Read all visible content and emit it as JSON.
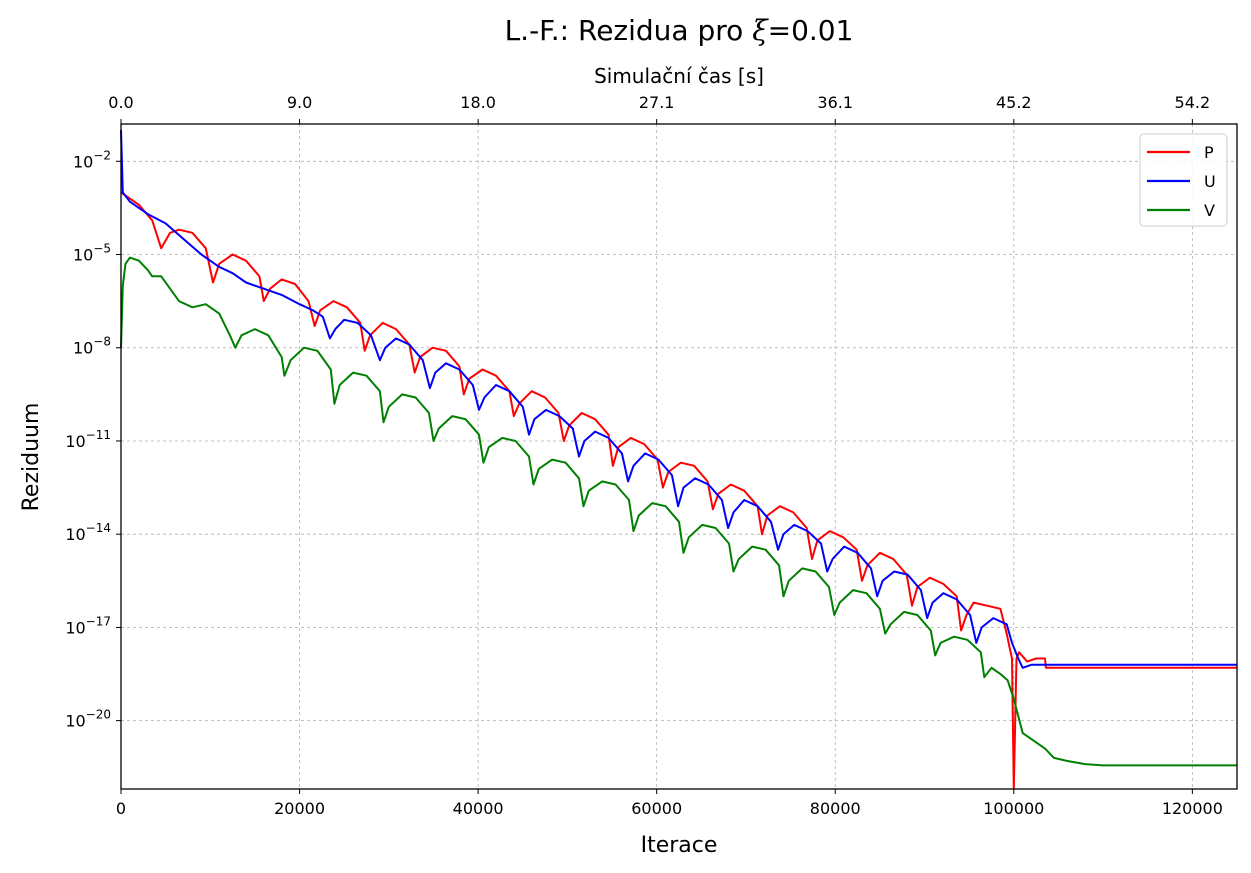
{
  "chart_data": {
    "type": "line",
    "title": "L.-F.: Rezidua pro ξ=0.01",
    "title_parts": {
      "prefix": "L.-F.: Rezidua pro ",
      "symbol": "ξ",
      "suffix": "=0.01"
    },
    "xlabel": "Iterace",
    "ylabel": "Reziduum",
    "top_xlabel": "Simulační čas [s]",
    "xlim": [
      0,
      125000
    ],
    "ylim_log10": [
      -22.2,
      -0.8
    ],
    "y_scale": "log",
    "x_ticks": [
      0,
      20000,
      40000,
      60000,
      80000,
      100000,
      120000
    ],
    "y_ticks_exp": [
      -2,
      -5,
      -8,
      -11,
      -14,
      -17,
      -20
    ],
    "y_tick_base": "10",
    "top_ticks": [
      {
        "iter": 0,
        "label": "0.0"
      },
      {
        "iter": 20000,
        "label": "9.0"
      },
      {
        "iter": 40000,
        "label": "18.0"
      },
      {
        "iter": 60000,
        "label": "27.1"
      },
      {
        "iter": 80000,
        "label": "36.1"
      },
      {
        "iter": 100000,
        "label": "45.2"
      },
      {
        "iter": 120000,
        "label": "54.2"
      }
    ],
    "grid": true,
    "legend_position": "top-right",
    "series": [
      {
        "name": "P",
        "color": "#ff0000",
        "points": [
          [
            0,
            -3.0
          ],
          [
            2000,
            -3.4
          ],
          [
            3500,
            -3.9
          ],
          [
            4500,
            -4.8
          ],
          [
            5500,
            -4.3
          ],
          [
            6500,
            -4.2
          ],
          [
            8000,
            -4.3
          ],
          [
            9500,
            -4.8
          ],
          [
            10300,
            -5.9
          ],
          [
            11000,
            -5.3
          ],
          [
            12500,
            -5.0
          ],
          [
            14000,
            -5.2
          ],
          [
            15500,
            -5.7
          ],
          [
            16000,
            -6.5
          ],
          [
            16700,
            -6.1
          ],
          [
            18000,
            -5.8
          ],
          [
            19500,
            -5.95
          ],
          [
            21000,
            -6.5
          ],
          [
            21700,
            -7.3
          ],
          [
            22300,
            -6.8
          ],
          [
            23800,
            -6.5
          ],
          [
            25300,
            -6.7
          ],
          [
            26800,
            -7.2
          ],
          [
            27300,
            -8.1
          ],
          [
            27900,
            -7.6
          ],
          [
            29300,
            -7.2
          ],
          [
            30800,
            -7.4
          ],
          [
            32300,
            -7.9
          ],
          [
            32900,
            -8.8
          ],
          [
            33500,
            -8.3
          ],
          [
            34900,
            -8.0
          ],
          [
            36400,
            -8.1
          ],
          [
            37900,
            -8.6
          ],
          [
            38400,
            -9.5
          ],
          [
            39000,
            -9.0
          ],
          [
            40500,
            -8.7
          ],
          [
            42000,
            -8.9
          ],
          [
            43500,
            -9.4
          ],
          [
            44000,
            -10.2
          ],
          [
            44600,
            -9.8
          ],
          [
            46000,
            -9.4
          ],
          [
            47500,
            -9.6
          ],
          [
            49000,
            -10.1
          ],
          [
            49600,
            -11.0
          ],
          [
            50200,
            -10.5
          ],
          [
            51600,
            -10.1
          ],
          [
            53100,
            -10.3
          ],
          [
            54600,
            -10.8
          ],
          [
            55100,
            -11.8
          ],
          [
            55700,
            -11.2
          ],
          [
            57100,
            -10.9
          ],
          [
            58600,
            -11.1
          ],
          [
            60100,
            -11.6
          ],
          [
            60700,
            -12.5
          ],
          [
            61300,
            -12.0
          ],
          [
            62700,
            -11.7
          ],
          [
            64200,
            -11.8
          ],
          [
            65700,
            -12.3
          ],
          [
            66300,
            -13.2
          ],
          [
            66900,
            -12.7
          ],
          [
            68300,
            -12.4
          ],
          [
            69800,
            -12.6
          ],
          [
            71300,
            -13.1
          ],
          [
            71800,
            -14.0
          ],
          [
            72400,
            -13.4
          ],
          [
            73800,
            -13.1
          ],
          [
            75300,
            -13.3
          ],
          [
            76800,
            -13.8
          ],
          [
            77400,
            -14.8
          ],
          [
            78000,
            -14.2
          ],
          [
            79400,
            -13.9
          ],
          [
            80900,
            -14.1
          ],
          [
            82400,
            -14.5
          ],
          [
            83000,
            -15.5
          ],
          [
            83600,
            -15.0
          ],
          [
            85000,
            -14.6
          ],
          [
            86500,
            -14.8
          ],
          [
            88000,
            -15.3
          ],
          [
            88600,
            -16.3
          ],
          [
            89200,
            -15.7
          ],
          [
            90600,
            -15.4
          ],
          [
            92100,
            -15.6
          ],
          [
            93600,
            -16.0
          ],
          [
            94100,
            -17.1
          ],
          [
            94700,
            -16.6
          ],
          [
            95500,
            -16.2
          ],
          [
            97000,
            -16.3
          ],
          [
            98500,
            -16.4
          ],
          [
            99200,
            -17.2
          ],
          [
            99500,
            -17.6
          ],
          [
            99800,
            -18.0
          ],
          [
            100000,
            -22.2
          ],
          [
            100300,
            -18.0
          ],
          [
            100600,
            -17.8
          ],
          [
            101500,
            -18.1
          ],
          [
            102500,
            -18.0
          ],
          [
            103500,
            -18.0
          ],
          [
            103600,
            -18.3
          ],
          [
            125000,
            -18.3
          ]
        ]
      },
      {
        "name": "U",
        "color": "#0000ff",
        "points": [
          [
            0,
            -1.0
          ],
          [
            200,
            -3.0
          ],
          [
            1000,
            -3.3
          ],
          [
            3000,
            -3.7
          ],
          [
            5000,
            -4.0
          ],
          [
            7000,
            -4.5
          ],
          [
            9000,
            -5.0
          ],
          [
            11000,
            -5.4
          ],
          [
            12500,
            -5.6
          ],
          [
            14000,
            -5.9
          ],
          [
            16000,
            -6.1
          ],
          [
            18000,
            -6.3
          ],
          [
            20000,
            -6.6
          ],
          [
            21500,
            -6.8
          ],
          [
            22600,
            -7.0
          ],
          [
            23400,
            -7.7
          ],
          [
            24000,
            -7.4
          ],
          [
            25000,
            -7.1
          ],
          [
            26500,
            -7.2
          ],
          [
            28000,
            -7.6
          ],
          [
            29000,
            -8.4
          ],
          [
            29600,
            -8.0
          ],
          [
            30800,
            -7.7
          ],
          [
            32300,
            -7.9
          ],
          [
            33800,
            -8.4
          ],
          [
            34600,
            -9.3
          ],
          [
            35200,
            -8.8
          ],
          [
            36400,
            -8.5
          ],
          [
            37900,
            -8.7
          ],
          [
            39400,
            -9.2
          ],
          [
            40100,
            -10.0
          ],
          [
            40700,
            -9.6
          ],
          [
            42000,
            -9.2
          ],
          [
            43500,
            -9.4
          ],
          [
            45000,
            -9.9
          ],
          [
            45700,
            -10.8
          ],
          [
            46300,
            -10.3
          ],
          [
            47600,
            -10.0
          ],
          [
            49100,
            -10.2
          ],
          [
            50600,
            -10.6
          ],
          [
            51300,
            -11.5
          ],
          [
            51900,
            -11.0
          ],
          [
            53100,
            -10.7
          ],
          [
            54600,
            -10.9
          ],
          [
            56100,
            -11.4
          ],
          [
            56800,
            -12.3
          ],
          [
            57400,
            -11.8
          ],
          [
            58700,
            -11.4
          ],
          [
            60200,
            -11.6
          ],
          [
            61700,
            -12.1
          ],
          [
            62400,
            -13.1
          ],
          [
            63000,
            -12.5
          ],
          [
            64300,
            -12.2
          ],
          [
            65800,
            -12.4
          ],
          [
            67300,
            -12.9
          ],
          [
            68000,
            -13.8
          ],
          [
            68600,
            -13.3
          ],
          [
            69800,
            -12.9
          ],
          [
            71300,
            -13.1
          ],
          [
            72800,
            -13.6
          ],
          [
            73600,
            -14.5
          ],
          [
            74200,
            -14.0
          ],
          [
            75400,
            -13.7
          ],
          [
            76900,
            -13.9
          ],
          [
            78400,
            -14.3
          ],
          [
            79100,
            -15.2
          ],
          [
            79700,
            -14.8
          ],
          [
            81000,
            -14.4
          ],
          [
            82500,
            -14.6
          ],
          [
            84000,
            -15.1
          ],
          [
            84700,
            -16.0
          ],
          [
            85300,
            -15.5
          ],
          [
            86600,
            -15.2
          ],
          [
            88100,
            -15.3
          ],
          [
            89600,
            -15.8
          ],
          [
            90300,
            -16.7
          ],
          [
            90900,
            -16.2
          ],
          [
            92100,
            -15.9
          ],
          [
            93600,
            -16.1
          ],
          [
            95100,
            -16.6
          ],
          [
            95800,
            -17.5
          ],
          [
            96400,
            -17.0
          ],
          [
            97700,
            -16.7
          ],
          [
            99200,
            -16.9
          ],
          [
            99800,
            -17.5
          ],
          [
            100500,
            -18.0
          ],
          [
            101000,
            -18.3
          ],
          [
            102000,
            -18.2
          ],
          [
            125000,
            -18.2
          ]
        ]
      },
      {
        "name": "V",
        "color": "#008000",
        "points": [
          [
            0,
            -8.0
          ],
          [
            200,
            -6.0
          ],
          [
            500,
            -5.3
          ],
          [
            1000,
            -5.1
          ],
          [
            2000,
            -5.2
          ],
          [
            3000,
            -5.5
          ],
          [
            3500,
            -5.7
          ],
          [
            4500,
            -5.7
          ],
          [
            5500,
            -6.1
          ],
          [
            6500,
            -6.5
          ],
          [
            8000,
            -6.7
          ],
          [
            9500,
            -6.6
          ],
          [
            11000,
            -6.9
          ],
          [
            12200,
            -7.6
          ],
          [
            12800,
            -8.0
          ],
          [
            13500,
            -7.6
          ],
          [
            15000,
            -7.4
          ],
          [
            16500,
            -7.6
          ],
          [
            18000,
            -8.3
          ],
          [
            18300,
            -8.9
          ],
          [
            19000,
            -8.4
          ],
          [
            20500,
            -8.0
          ],
          [
            22000,
            -8.1
          ],
          [
            23500,
            -8.7
          ],
          [
            23900,
            -9.8
          ],
          [
            24500,
            -9.2
          ],
          [
            26000,
            -8.8
          ],
          [
            27500,
            -8.9
          ],
          [
            29000,
            -9.4
          ],
          [
            29400,
            -10.4
          ],
          [
            30000,
            -9.9
          ],
          [
            31500,
            -9.5
          ],
          [
            33000,
            -9.6
          ],
          [
            34500,
            -10.1
          ],
          [
            35000,
            -11.0
          ],
          [
            35600,
            -10.6
          ],
          [
            37100,
            -10.2
          ],
          [
            38600,
            -10.3
          ],
          [
            40100,
            -10.8
          ],
          [
            40600,
            -11.7
          ],
          [
            41200,
            -11.2
          ],
          [
            42700,
            -10.9
          ],
          [
            44200,
            -11.0
          ],
          [
            45700,
            -11.5
          ],
          [
            46200,
            -12.4
          ],
          [
            46800,
            -11.9
          ],
          [
            48300,
            -11.6
          ],
          [
            49800,
            -11.7
          ],
          [
            51300,
            -12.2
          ],
          [
            51800,
            -13.1
          ],
          [
            52400,
            -12.6
          ],
          [
            53900,
            -12.3
          ],
          [
            55400,
            -12.4
          ],
          [
            56900,
            -12.9
          ],
          [
            57400,
            -13.9
          ],
          [
            58000,
            -13.4
          ],
          [
            59500,
            -13.0
          ],
          [
            61000,
            -13.1
          ],
          [
            62500,
            -13.6
          ],
          [
            63000,
            -14.6
          ],
          [
            63600,
            -14.1
          ],
          [
            65100,
            -13.7
          ],
          [
            66600,
            -13.8
          ],
          [
            68100,
            -14.3
          ],
          [
            68600,
            -15.2
          ],
          [
            69200,
            -14.8
          ],
          [
            70700,
            -14.4
          ],
          [
            72200,
            -14.5
          ],
          [
            73700,
            -15.0
          ],
          [
            74200,
            -16.0
          ],
          [
            74800,
            -15.5
          ],
          [
            76300,
            -15.1
          ],
          [
            77800,
            -15.2
          ],
          [
            79300,
            -15.7
          ],
          [
            79900,
            -16.6
          ],
          [
            80500,
            -16.2
          ],
          [
            82000,
            -15.8
          ],
          [
            83500,
            -15.9
          ],
          [
            85000,
            -16.4
          ],
          [
            85600,
            -17.2
          ],
          [
            86200,
            -16.9
          ],
          [
            87700,
            -16.5
          ],
          [
            89200,
            -16.6
          ],
          [
            90700,
            -17.1
          ],
          [
            91200,
            -17.9
          ],
          [
            91800,
            -17.5
          ],
          [
            93300,
            -17.3
          ],
          [
            94800,
            -17.4
          ],
          [
            96300,
            -17.8
          ],
          [
            96700,
            -18.6
          ],
          [
            97500,
            -18.3
          ],
          [
            98500,
            -18.5
          ],
          [
            99300,
            -18.7
          ],
          [
            100000,
            -19.3
          ],
          [
            101000,
            -20.4
          ],
          [
            102000,
            -20.6
          ],
          [
            103500,
            -20.9
          ],
          [
            104500,
            -21.2
          ],
          [
            106000,
            -21.3
          ],
          [
            108000,
            -21.4
          ],
          [
            110000,
            -21.44
          ],
          [
            125000,
            -21.44
          ]
        ]
      }
    ]
  }
}
